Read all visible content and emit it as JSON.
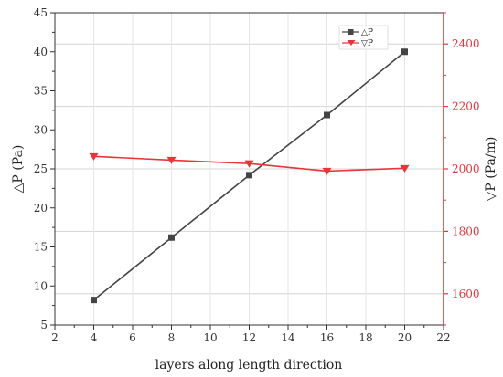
{
  "chart_data": {
    "type": "line",
    "xlabel": "layers along length direction",
    "ylabel_left": "△P (Pa)",
    "ylabel_right": "▽P (Pa/m)",
    "x": [
      4,
      8,
      12,
      16,
      20
    ],
    "xlim": [
      2,
      22
    ],
    "xticks": [
      2,
      4,
      6,
      8,
      10,
      12,
      14,
      16,
      18,
      20,
      22
    ],
    "ylim_left": [
      5,
      45
    ],
    "yticks_left": [
      5,
      10,
      15,
      20,
      25,
      30,
      35,
      40,
      45
    ],
    "ylim_right": [
      1500,
      2500
    ],
    "yticks_right": [
      1600,
      1800,
      2000,
      2200,
      2400
    ],
    "grid": true,
    "legend": "top-right",
    "series": [
      {
        "name": "△P",
        "axis": "left",
        "marker": "square",
        "color": "#444444",
        "values": [
          8.2,
          16.2,
          24.2,
          31.9,
          40.0
        ]
      },
      {
        "name": "▽P",
        "axis": "right",
        "marker": "triangle-down",
        "color": "#e8353b",
        "values": [
          2040,
          2028,
          2017,
          1993,
          2002
        ]
      }
    ]
  }
}
